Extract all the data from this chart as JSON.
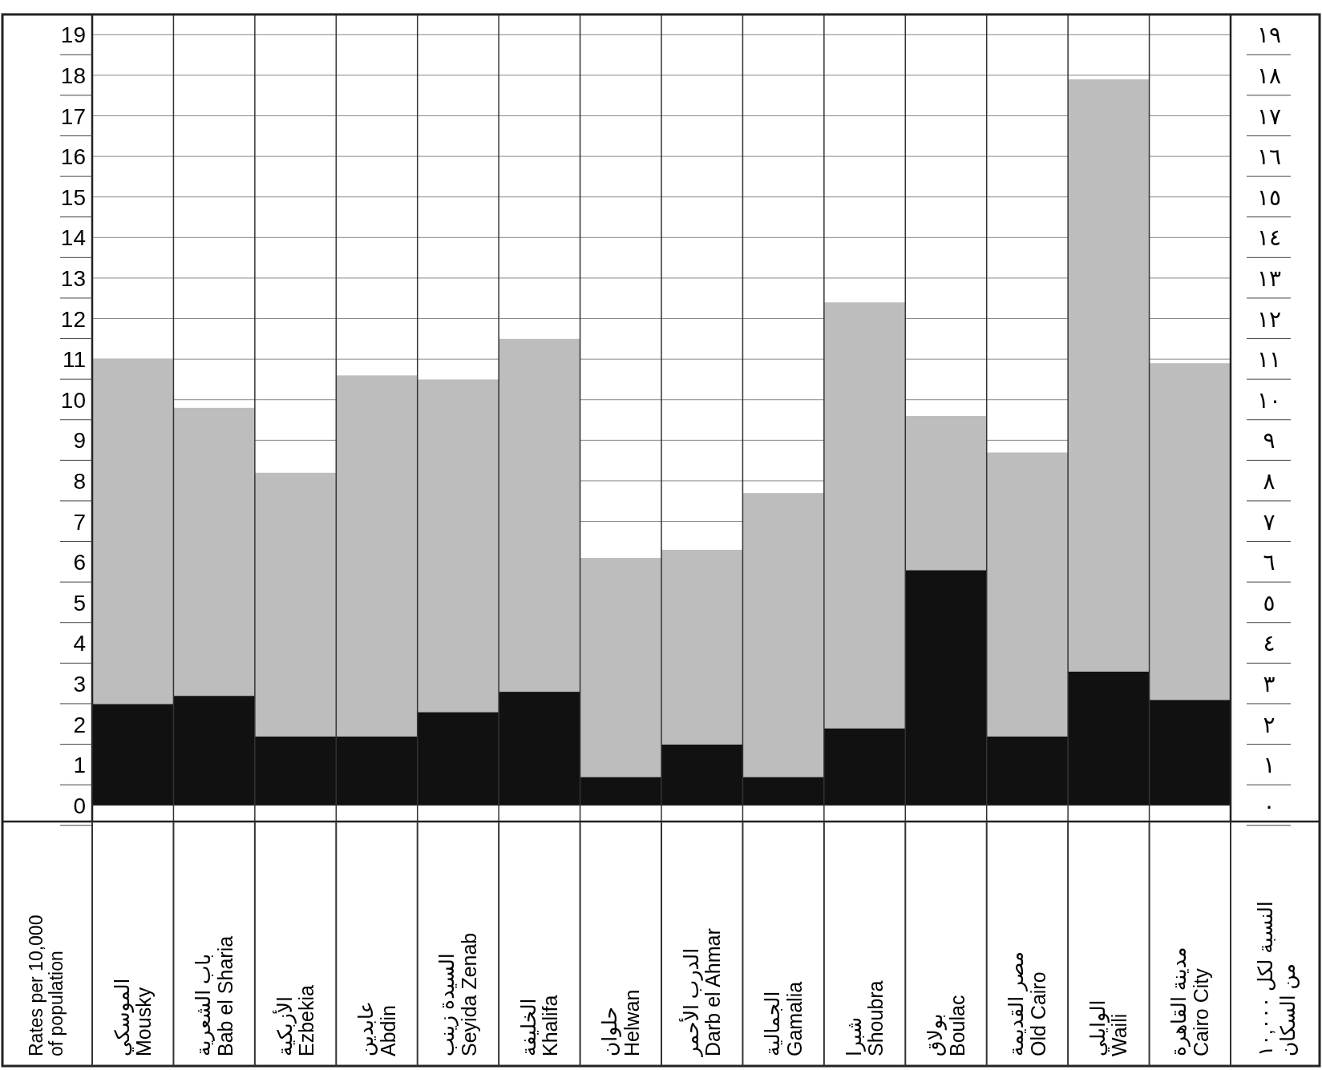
{
  "chart_data": {
    "type": "bar",
    "stacked": true,
    "categories": [
      "الموسكي\nMousky",
      "باب الشعرية\nBab el Sharia",
      "الأزبكية\nEzbekia",
      "عابدين\nAbdin",
      "السيدة زينب\nSeyida Zenab",
      "الخليفة\nKhalifa",
      "حلوان\nHelwan",
      "الدرب الأحمر\nDarb el Ahmar",
      "الجمالية\nGamalia",
      "شبرا\nShoubra",
      "بولاق\nBoulac",
      "مصر القديمة\nOld Cairo",
      "الوايلي\nWaili",
      "مدينة القاهرة\nCairo City"
    ],
    "series": [
      {
        "color": "#111111",
        "values": [
          2.5,
          2.7,
          1.7,
          1.7,
          2.3,
          2.8,
          0.7,
          1.5,
          0.7,
          1.9,
          5.8,
          1.7,
          3.3,
          2.6
        ]
      },
      {
        "color": "#bdbdbd",
        "values": [
          8.5,
          7.1,
          6.5,
          8.9,
          8.2,
          8.7,
          5.4,
          4.8,
          7.0,
          10.5,
          3.8,
          7.0,
          14.6,
          8.3
        ]
      }
    ],
    "ylabel": "Rates per 10,000\nof population",
    "y2label": "النسبة لكل ١٠,٠٠٠\nمن السكان",
    "ylim": [
      -0.4,
      19.5
    ],
    "yticks": [
      0,
      1,
      2,
      3,
      4,
      5,
      6,
      7,
      8,
      9,
      10,
      11,
      12,
      13,
      14,
      15,
      16,
      17,
      18,
      19
    ],
    "y2lim": [
      -0.4,
      19.5
    ],
    "y2ticks": [
      {
        "value": 0,
        "label": "٠"
      },
      {
        "value": 1,
        "label": "١"
      },
      {
        "value": 2,
        "label": "٢"
      },
      {
        "value": 3,
        "label": "٣"
      },
      {
        "value": 4,
        "label": "٤"
      },
      {
        "value": 5,
        "label": "٥"
      },
      {
        "value": 6,
        "label": "٦"
      },
      {
        "value": 7,
        "label": "٧"
      },
      {
        "value": 8,
        "label": "٨"
      },
      {
        "value": 9,
        "label": "٩"
      },
      {
        "value": 10,
        "label": "١٠"
      },
      {
        "value": 11,
        "label": "١١"
      },
      {
        "value": 12,
        "label": "١٢"
      },
      {
        "value": 13,
        "label": "١٣"
      },
      {
        "value": 14,
        "label": "١٤"
      },
      {
        "value": 15,
        "label": "١٥"
      },
      {
        "value": 16,
        "label": "١٦"
      },
      {
        "value": 17,
        "label": "١٧"
      },
      {
        "value": 18,
        "label": "١٨"
      },
      {
        "value": 19,
        "label": "١٩"
      }
    ],
    "grid": true
  }
}
